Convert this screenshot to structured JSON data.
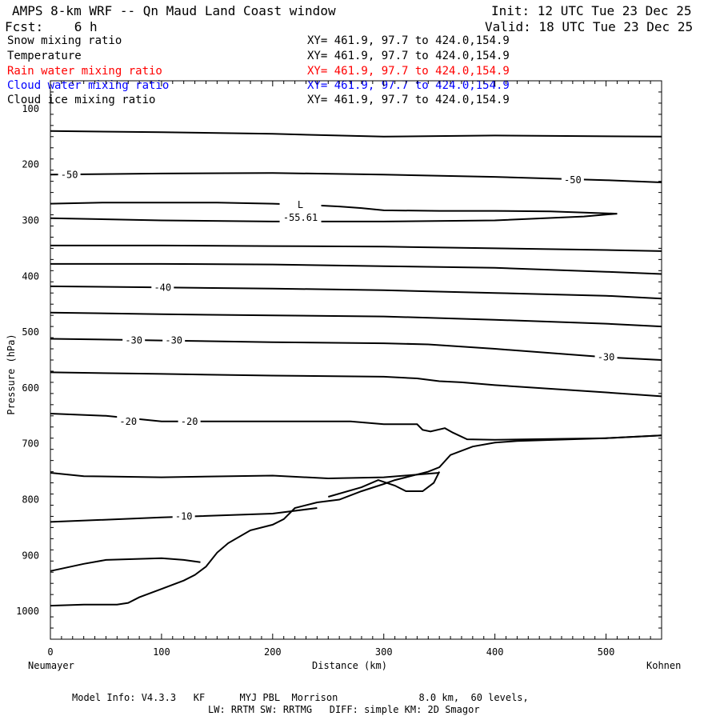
{
  "header": {
    "title": "AMPS 8-km WRF -- Qn Maud Land Coast window",
    "init": "Init: 12 UTC Tue 23 Dec 25",
    "fcst": "Fcst:    6 h",
    "valid": "Valid: 18 UTC Tue 23 Dec 25"
  },
  "fields": [
    {
      "name": "Snow mixing ratio",
      "xy": "XY= 461.9, 97.7 to 424.0,154.9",
      "color": "#000000"
    },
    {
      "name": "Temperature",
      "xy": "XY= 461.9, 97.7 to 424.0,154.9",
      "color": "#000000"
    },
    {
      "name": "Rain water mixing ratio",
      "xy": "XY= 461.9, 97.7 to 424.0,154.9",
      "color": "#ff0000"
    },
    {
      "name": "Cloud water mixing ratio",
      "xy": "XY= 461.9, 97.7 to 424.0,154.9",
      "color": "#0000ff"
    },
    {
      "name": "Cloud ice mixing ratio",
      "xy": "XY= 461.9, 97.7 to 424.0,154.9",
      "color": "#000000"
    }
  ],
  "footer": {
    "left_end": "Neumayer",
    "right_end": "Kohnen",
    "model_info_line1": "Model Info: V4.3.3   KF      MYJ PBL  Morrison              8.0 km,  60 levels,",
    "model_info_line2": "LW: RRTM SW: RRTMG   DIFF: simple KM: 2D Smagor"
  },
  "chart_data": {
    "type": "line",
    "xlabel": "Distance (km)",
    "ylabel": "Pressure (hPa)",
    "xlim": [
      0,
      550
    ],
    "ylim": [
      1050,
      50
    ],
    "xticks": [
      0,
      100,
      200,
      300,
      400,
      500
    ],
    "yticks": [
      100,
      200,
      300,
      400,
      500,
      600,
      700,
      800,
      900,
      1000
    ],
    "grid": false,
    "min_marker": {
      "symbol": "L",
      "label": "-55.61",
      "x": 225,
      "y": 295
    },
    "isotherms": [
      {
        "points": [
          [
            0,
            140
          ],
          [
            100,
            142
          ],
          [
            200,
            145
          ],
          [
            300,
            150
          ],
          [
            400,
            148
          ],
          [
            550,
            150
          ]
        ],
        "labels": []
      },
      {
        "points": [
          [
            0,
            218
          ],
          [
            100,
            216
          ],
          [
            200,
            215
          ],
          [
            300,
            218
          ],
          [
            400,
            222
          ],
          [
            500,
            228
          ],
          [
            550,
            232
          ]
        ],
        "labels": [
          {
            "x": 17,
            "y": 218,
            "text": "-50"
          },
          {
            "x": 470,
            "y": 228,
            "text": "-50"
          }
        ]
      },
      {
        "points": [
          [
            0,
            270
          ],
          [
            50,
            268
          ],
          [
            150,
            268
          ],
          [
            200,
            270
          ],
          [
            230,
            272
          ],
          [
            260,
            275
          ],
          [
            280,
            278
          ],
          [
            300,
            282
          ],
          [
            350,
            283
          ],
          [
            400,
            283
          ],
          [
            450,
            284
          ],
          [
            510,
            288
          ]
        ],
        "labels": []
      },
      {
        "points": [
          [
            0,
            296
          ],
          [
            100,
            300
          ],
          [
            200,
            302
          ],
          [
            300,
            302
          ],
          [
            400,
            300
          ],
          [
            480,
            293
          ],
          [
            510,
            288
          ]
        ],
        "labels": []
      },
      {
        "points": [
          [
            0,
            345
          ],
          [
            100,
            345
          ],
          [
            200,
            346
          ],
          [
            300,
            347
          ],
          [
            400,
            350
          ],
          [
            500,
            353
          ],
          [
            550,
            355
          ]
        ],
        "labels": []
      },
      {
        "points": [
          [
            0,
            378
          ],
          [
            100,
            378
          ],
          [
            200,
            379
          ],
          [
            300,
            382
          ],
          [
            400,
            385
          ],
          [
            500,
            392
          ],
          [
            550,
            396
          ]
        ],
        "labels": []
      },
      {
        "points": [
          [
            0,
            418
          ],
          [
            100,
            420
          ],
          [
            200,
            422
          ],
          [
            300,
            425
          ],
          [
            400,
            430
          ],
          [
            500,
            435
          ],
          [
            550,
            440
          ]
        ],
        "labels": [
          {
            "x": 101,
            "y": 420,
            "text": "-40"
          }
        ]
      },
      {
        "points": [
          [
            0,
            465
          ],
          [
            100,
            468
          ],
          [
            200,
            470
          ],
          [
            300,
            472
          ],
          [
            400,
            478
          ],
          [
            500,
            485
          ],
          [
            550,
            490
          ]
        ],
        "labels": []
      },
      {
        "points": [
          [
            0,
            512
          ],
          [
            70,
            514
          ],
          [
            100,
            515
          ],
          [
            200,
            518
          ],
          [
            300,
            520
          ],
          [
            340,
            522
          ],
          [
            400,
            530
          ],
          [
            500,
            545
          ],
          [
            550,
            550
          ]
        ],
        "labels": [
          {
            "x": 75,
            "y": 515,
            "text": "-30"
          },
          {
            "x": 111,
            "y": 515,
            "text": "-30"
          },
          {
            "x": 500,
            "y": 545,
            "text": "-30"
          }
        ]
      },
      {
        "points": [
          [
            0,
            572
          ],
          [
            100,
            575
          ],
          [
            200,
            578
          ],
          [
            300,
            580
          ],
          [
            330,
            583
          ],
          [
            350,
            588
          ],
          [
            370,
            590
          ],
          [
            400,
            595
          ],
          [
            500,
            608
          ],
          [
            550,
            615
          ]
        ],
        "labels": []
      },
      {
        "points": [
          [
            0,
            646
          ],
          [
            50,
            650
          ],
          [
            100,
            660
          ],
          [
            200,
            660
          ],
          [
            270,
            660
          ],
          [
            300,
            665
          ],
          [
            330,
            665
          ],
          [
            335,
            675
          ],
          [
            342,
            678
          ],
          [
            355,
            672
          ],
          [
            362,
            680
          ],
          [
            375,
            692
          ],
          [
            400,
            693
          ],
          [
            500,
            690
          ],
          [
            550,
            685
          ]
        ],
        "labels": [
          {
            "x": 70,
            "y": 660,
            "text": "-20"
          },
          {
            "x": 125,
            "y": 660,
            "text": "-20"
          }
        ]
      },
      {
        "points": [
          [
            0,
            752
          ],
          [
            30,
            758
          ],
          [
            100,
            760
          ],
          [
            200,
            757
          ],
          [
            250,
            762
          ],
          [
            300,
            760
          ],
          [
            350,
            752
          ]
        ],
        "labels": []
      },
      {
        "points": [
          [
            0,
            840
          ],
          [
            100,
            832
          ],
          [
            200,
            825
          ],
          [
            240,
            815
          ]
        ],
        "labels": [
          {
            "x": 120,
            "y": 830,
            "text": "-10"
          }
        ]
      },
      {
        "points": [
          [
            0,
            928
          ],
          [
            30,
            915
          ],
          [
            50,
            908
          ],
          [
            100,
            905
          ],
          [
            120,
            908
          ],
          [
            135,
            912
          ]
        ],
        "labels": []
      }
    ],
    "terrain": {
      "points": [
        [
          0,
          990
        ],
        [
          30,
          988
        ],
        [
          60,
          988
        ],
        [
          70,
          985
        ],
        [
          80,
          975
        ],
        [
          100,
          960
        ],
        [
          120,
          945
        ],
        [
          130,
          935
        ],
        [
          140,
          920
        ],
        [
          150,
          895
        ],
        [
          160,
          878
        ],
        [
          180,
          855
        ],
        [
          200,
          845
        ],
        [
          210,
          835
        ],
        [
          220,
          815
        ],
        [
          240,
          805
        ],
        [
          260,
          800
        ],
        [
          280,
          785
        ],
        [
          300,
          772
        ],
        [
          310,
          765
        ],
        [
          320,
          760
        ],
        [
          340,
          750
        ],
        [
          350,
          742
        ],
        [
          360,
          720
        ],
        [
          380,
          705
        ],
        [
          400,
          698
        ],
        [
          420,
          695
        ],
        [
          500,
          690
        ],
        [
          550,
          685
        ]
      ]
    },
    "dip": {
      "points": [
        [
          250,
          795
        ],
        [
          280,
          778
        ],
        [
          295,
          765
        ],
        [
          310,
          775
        ],
        [
          320,
          785
        ],
        [
          335,
          785
        ],
        [
          345,
          770
        ],
        [
          350,
          750
        ]
      ]
    }
  }
}
